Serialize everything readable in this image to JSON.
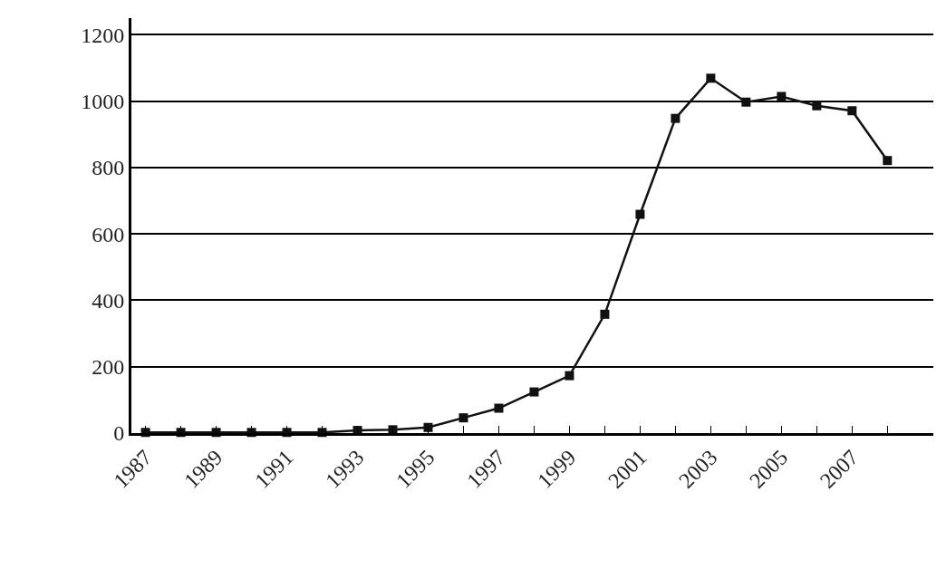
{
  "chart_data": {
    "type": "line",
    "x": [
      1987,
      1988,
      1989,
      1990,
      1991,
      1992,
      1993,
      1994,
      1995,
      1996,
      1997,
      1998,
      1999,
      2000,
      2001,
      2002,
      2003,
      2004,
      2005,
      2006,
      2007,
      2008
    ],
    "values": [
      2,
      2,
      2,
      2,
      2,
      2,
      8,
      10,
      17,
      46,
      75,
      124,
      173,
      358,
      659,
      948,
      1069,
      997,
      1014,
      986,
      971,
      821
    ],
    "color": "#111111",
    "marker": "square",
    "line_style": "solid",
    "grid": "y",
    "xlim": [
      1986.6,
      2009.3
    ],
    "xticks": [
      1987,
      {
        "value": 1988,
        "label": null
      },
      1989,
      {
        "value": 1990,
        "label": null
      },
      1991,
      {
        "value": 1992,
        "label": null
      },
      1993,
      {
        "value": 1994,
        "label": null
      },
      1995,
      {
        "value": 1996,
        "label": null
      },
      1997,
      {
        "value": 1998,
        "label": null
      },
      1999,
      {
        "value": 2000,
        "label": null
      },
      2001,
      {
        "value": 2002,
        "label": null
      },
      2003,
      {
        "value": 2004,
        "label": null
      },
      2005,
      {
        "value": 2006,
        "label": null
      },
      2007,
      {
        "value": 2008,
        "label": null
      }
    ],
    "ylim": [
      0,
      1250
    ],
    "yticks": [
      0,
      200,
      400,
      600,
      800,
      1000,
      1200
    ]
  }
}
